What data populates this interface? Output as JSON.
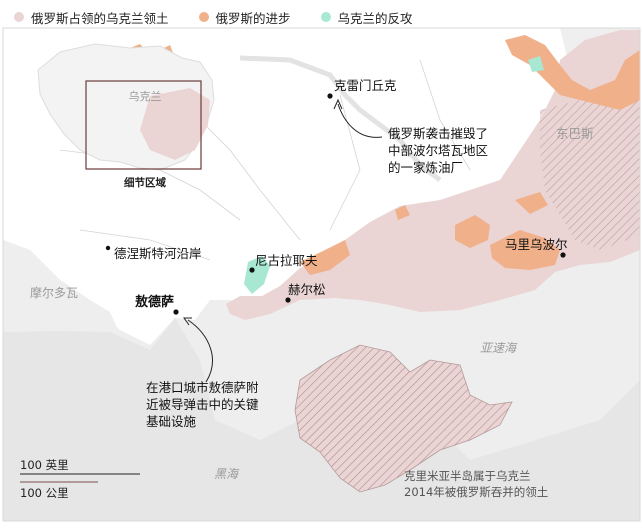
{
  "legend": {
    "items": [
      {
        "label": "俄罗斯占领的乌克兰领土",
        "color": "#ead4d4"
      },
      {
        "label": "俄罗斯的进步",
        "color": "#f0b08a"
      },
      {
        "label": "乌克兰的反攻",
        "color": "#a8e8d3"
      }
    ]
  },
  "inset": {
    "country_label": "乌克兰",
    "caption": "细节区域"
  },
  "cities": {
    "kremenchuk": "克雷门丘克",
    "mariupol": "马里乌波尔",
    "nikopol": "尼古拉耶夫",
    "kherson": "赫尔松",
    "odesa": "敖德萨",
    "dniester": "德涅斯特河沿岸"
  },
  "regions": {
    "donbas": "东巴斯",
    "moldova": "摩尔多瓦",
    "azov_sea": "亚速海",
    "black_sea": "黑海"
  },
  "annotations": {
    "refinery": [
      "俄罗斯袭击摧毁了",
      "中部波尔塔瓦地区",
      "的一家炼油厂"
    ],
    "odesa_strike": [
      "在港口城市敖德萨附",
      "近被导弹击中的关键",
      "基础设施"
    ],
    "crimea": [
      "克里米亚半岛属于乌克兰",
      "2014年被俄罗斯吞并的领土"
    ]
  },
  "scale": {
    "miles": "100 英里",
    "km": "100 公里"
  },
  "colors": {
    "occupied": "#ead4d4",
    "advance": "#f0b08a",
    "counter": "#a8e8d3",
    "land": "#ffffff",
    "outside": "#efefef",
    "sea": "#ebebeb",
    "border": "#cfcfcf"
  }
}
